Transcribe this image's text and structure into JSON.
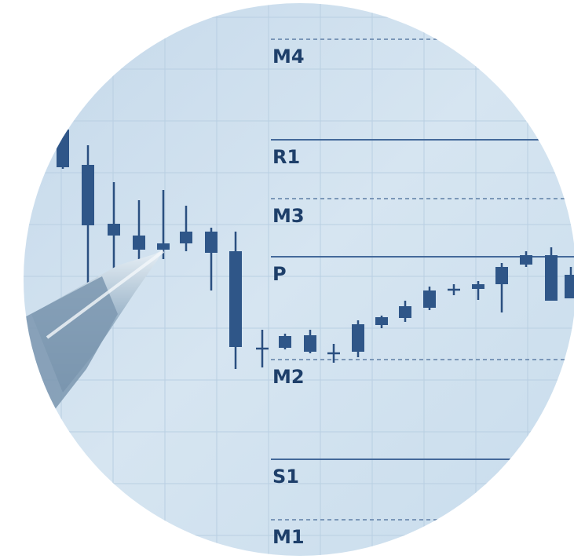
{
  "levels": [
    {
      "label": "M4"
    },
    {
      "label": "R1"
    },
    {
      "label": "M3"
    },
    {
      "label": "P"
    },
    {
      "label": "M2"
    },
    {
      "label": "S1"
    },
    {
      "label": "M1"
    }
  ]
}
